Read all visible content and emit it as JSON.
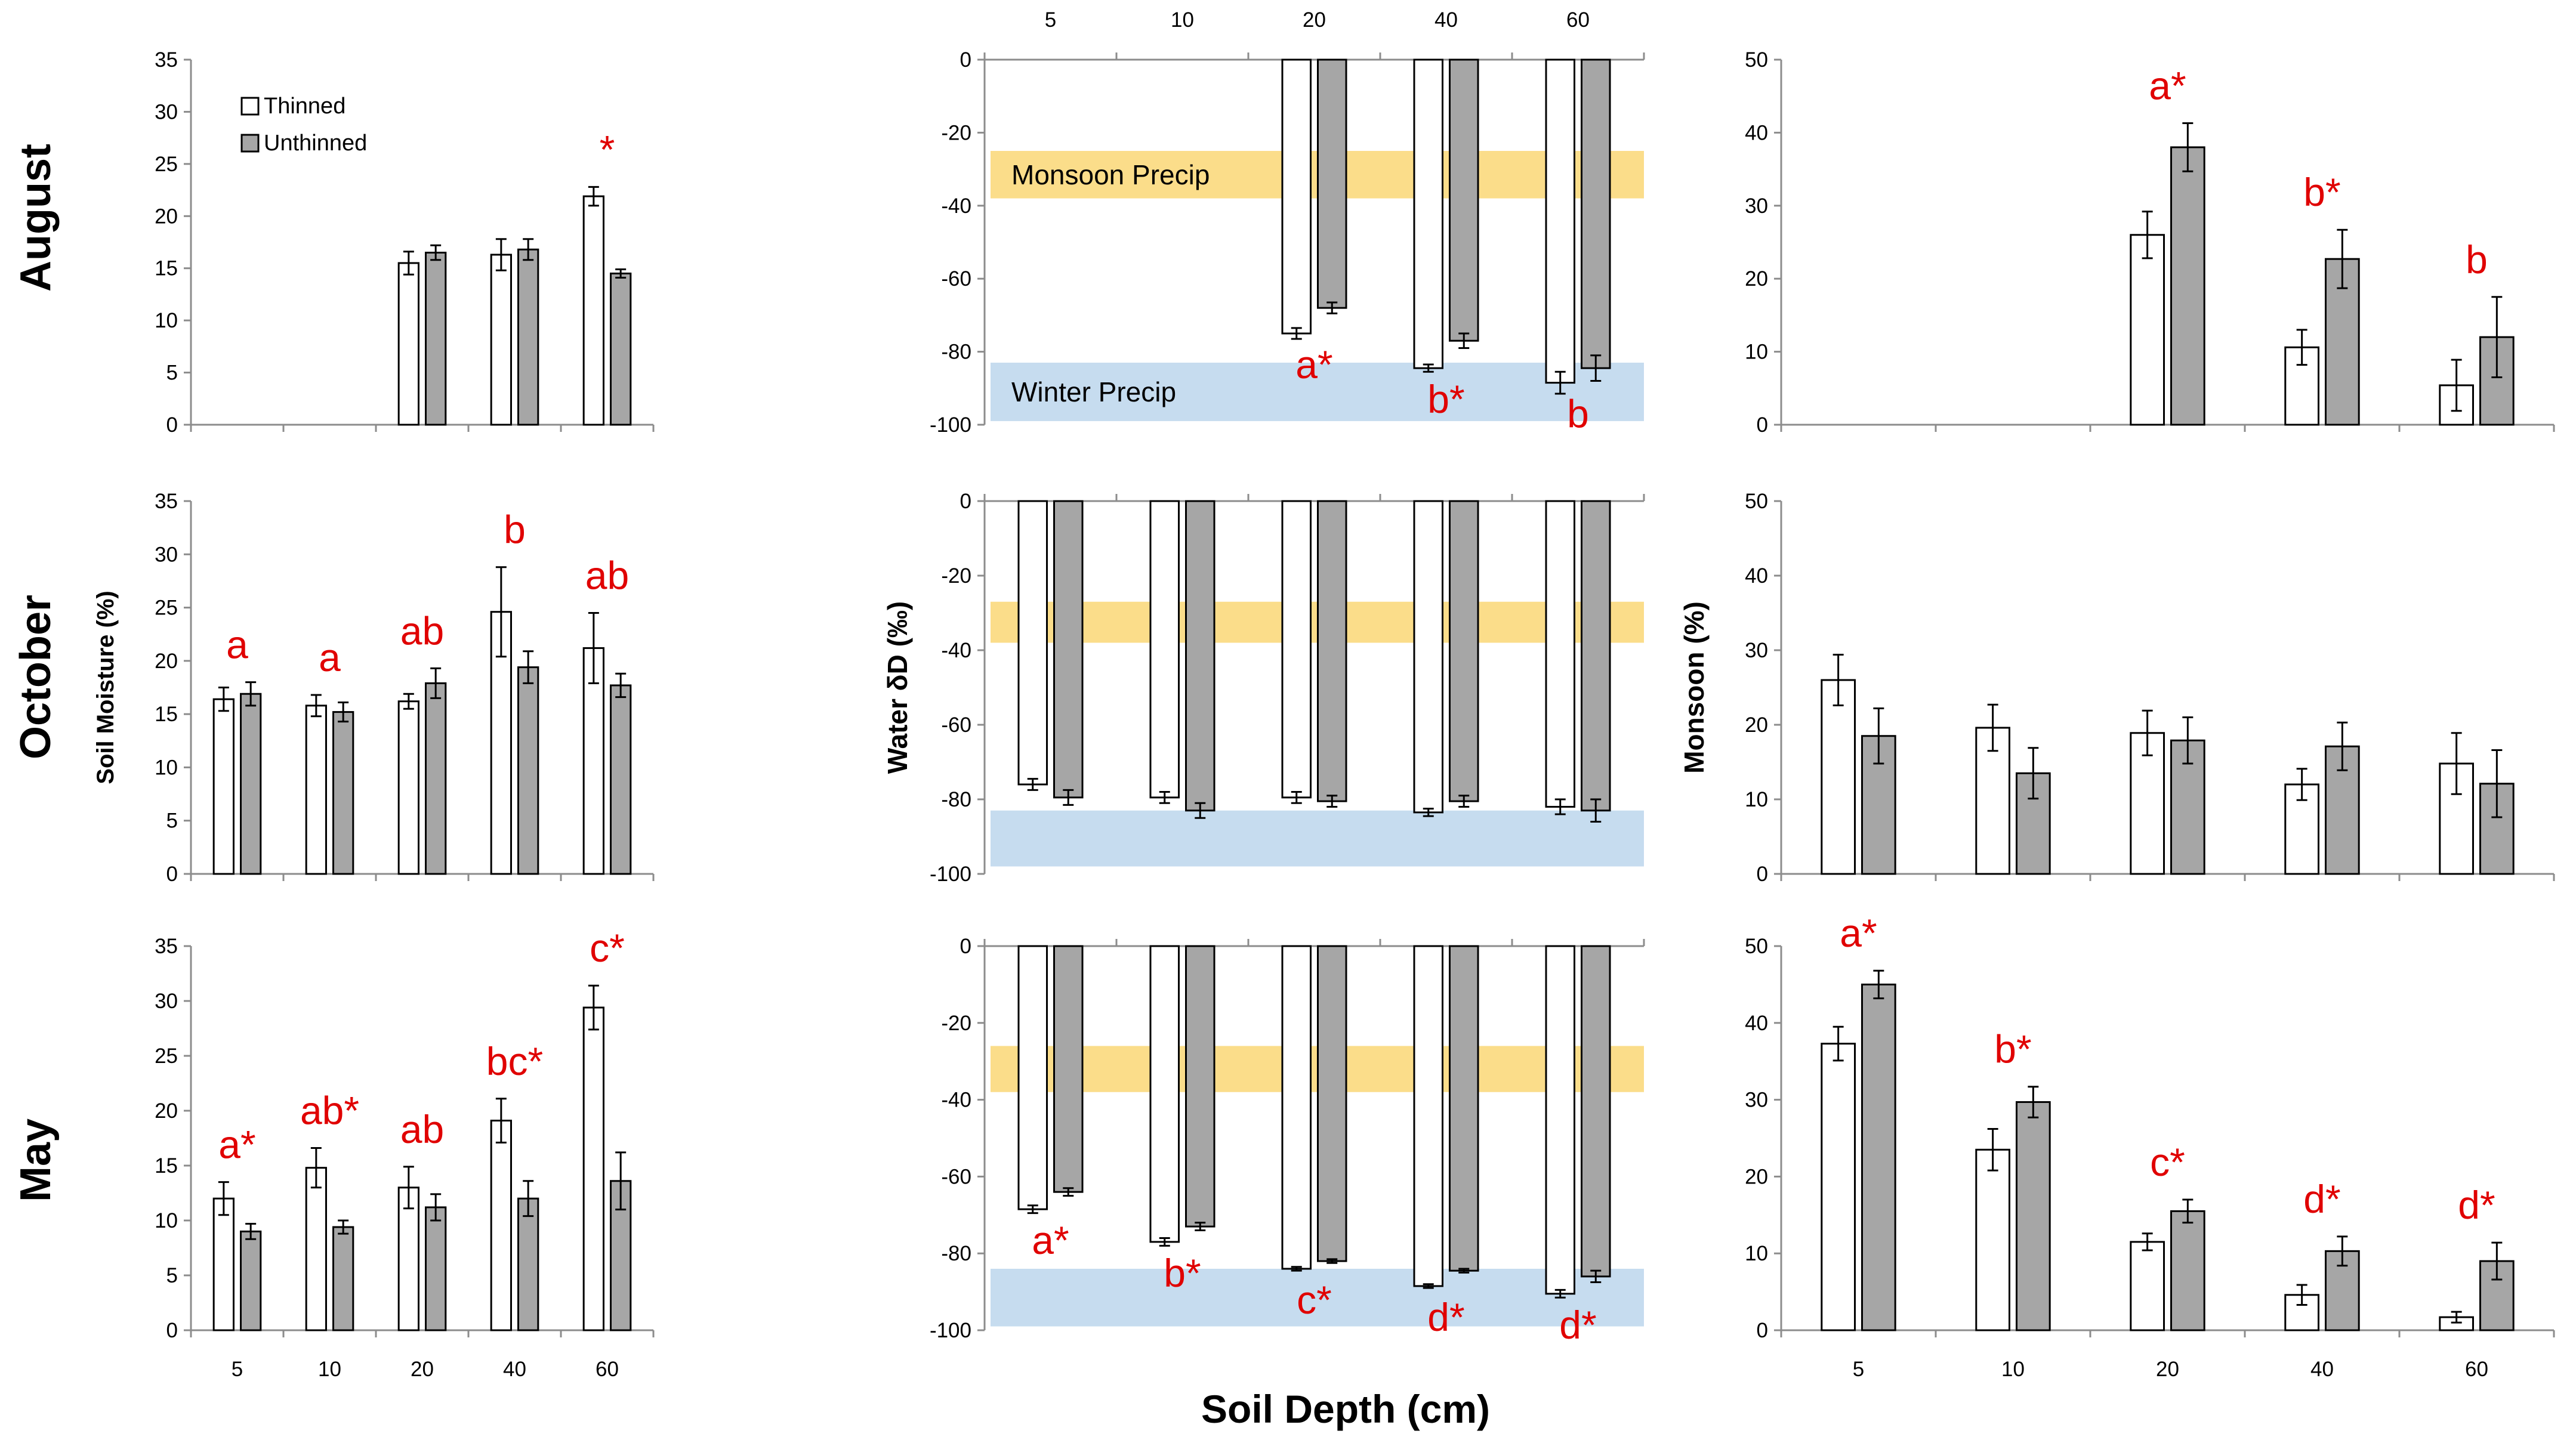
{
  "colors": {
    "thinned": "#ffffff",
    "unthinned": "#a6a6a6",
    "annotation": "#e00000",
    "monsoon_band": "#fbdd8a",
    "winter_band": "#c6dcef"
  },
  "row_titles": [
    "August",
    "October",
    "May"
  ],
  "x_title": "Soil Depth (cm)",
  "chart_data": [
    {
      "id": "aug-moisture",
      "type": "bar",
      "row": 0,
      "col": 0,
      "categories": [
        "5",
        "10",
        "20",
        "40",
        "60"
      ],
      "series": [
        {
          "name": "Thinned",
          "values": [
            null,
            null,
            15.5,
            16.3,
            21.9
          ],
          "errors": [
            null,
            null,
            1.1,
            1.5,
            0.9
          ]
        },
        {
          "name": "Unthinned",
          "values": [
            null,
            null,
            16.5,
            16.8,
            14.5
          ],
          "errors": [
            null,
            null,
            0.7,
            1.0,
            0.4
          ]
        }
      ],
      "ylim": [
        0,
        35
      ],
      "yticks": [
        0,
        5,
        10,
        15,
        20,
        25,
        30,
        35
      ],
      "ylabel": "",
      "show_xticks": false,
      "legend": {
        "items": [
          "Thinned",
          "Unthinned"
        ],
        "position": "top-left"
      },
      "annotations": [
        {
          "text": "*",
          "category": "60"
        }
      ]
    },
    {
      "id": "aug-water",
      "type": "bar",
      "row": 0,
      "col": 1,
      "categories": [
        "5",
        "10",
        "20",
        "40",
        "60"
      ],
      "series": [
        {
          "name": "Thinned",
          "values": [
            null,
            null,
            -75,
            -84.5,
            -88.5
          ],
          "errors": [
            null,
            null,
            1.5,
            1.0,
            3.0
          ]
        },
        {
          "name": "Unthinned",
          "values": [
            null,
            null,
            -68,
            -77,
            -84.5
          ],
          "errors": [
            null,
            null,
            1.5,
            2.0,
            3.5
          ]
        }
      ],
      "ylim": [
        -100,
        0
      ],
      "yticks": [
        0,
        -20,
        -40,
        -60,
        -80,
        -100
      ],
      "ylabel": "",
      "xticks_top": true,
      "bands": [
        {
          "name": "monsoon",
          "from": -25,
          "to": -38,
          "label": "Monsoon Precip"
        },
        {
          "name": "winter",
          "from": -83,
          "to": -99,
          "label": "Winter Precip"
        }
      ],
      "annotations": [
        {
          "text": "a*",
          "category": "20"
        },
        {
          "text": "b*",
          "category": "40"
        },
        {
          "text": "b",
          "category": "60"
        }
      ]
    },
    {
      "id": "aug-monsoon",
      "type": "bar",
      "row": 0,
      "col": 2,
      "categories": [
        "5",
        "10",
        "20",
        "40",
        "60"
      ],
      "series": [
        {
          "name": "Thinned",
          "values": [
            null,
            null,
            26,
            10.6,
            5.4
          ],
          "errors": [
            null,
            null,
            3.2,
            2.4,
            3.5
          ]
        },
        {
          "name": "Unthinned",
          "values": [
            null,
            null,
            38,
            22.7,
            12
          ],
          "errors": [
            null,
            null,
            3.3,
            4,
            5.5
          ]
        }
      ],
      "ylim": [
        0,
        50
      ],
      "yticks": [
        0,
        10,
        20,
        30,
        40,
        50
      ],
      "ylabel": "",
      "show_xticks": false,
      "annotations": [
        {
          "text": "a*",
          "category": "20"
        },
        {
          "text": "b*",
          "category": "40"
        },
        {
          "text": "b",
          "category": "60"
        }
      ]
    },
    {
      "id": "oct-moisture",
      "type": "bar",
      "row": 1,
      "col": 0,
      "categories": [
        "5",
        "10",
        "20",
        "40",
        "60"
      ],
      "series": [
        {
          "name": "Thinned",
          "values": [
            16.4,
            15.8,
            16.2,
            24.6,
            21.2
          ],
          "errors": [
            1.1,
            1.0,
            0.7,
            4.2,
            3.3
          ]
        },
        {
          "name": "Unthinned",
          "values": [
            16.9,
            15.2,
            17.9,
            19.4,
            17.7
          ],
          "errors": [
            1.1,
            0.9,
            1.4,
            1.5,
            1.1
          ]
        }
      ],
      "ylim": [
        0,
        35
      ],
      "yticks": [
        0,
        5,
        10,
        15,
        20,
        25,
        30,
        35
      ],
      "ylabel": "Soil Moisture (%)",
      "show_xticks": false,
      "annotations": [
        {
          "text": "a",
          "category": "5"
        },
        {
          "text": "a",
          "category": "10"
        },
        {
          "text": "ab",
          "category": "20"
        },
        {
          "text": "b",
          "category": "40"
        },
        {
          "text": "ab",
          "category": "60"
        }
      ]
    },
    {
      "id": "oct-water",
      "type": "bar",
      "row": 1,
      "col": 1,
      "categories": [
        "5",
        "10",
        "20",
        "40",
        "60"
      ],
      "series": [
        {
          "name": "Thinned",
          "values": [
            -76,
            -79.5,
            -79.5,
            -83.5,
            -82
          ],
          "errors": [
            1.5,
            1.5,
            1.5,
            1.0,
            2.0
          ]
        },
        {
          "name": "Unthinned",
          "values": [
            -79.5,
            -83,
            -80.5,
            -80.5,
            -83
          ],
          "errors": [
            2.0,
            2.0,
            1.5,
            1.5,
            3.0
          ]
        }
      ],
      "ylim": [
        -100,
        0
      ],
      "yticks": [
        0,
        -20,
        -40,
        -60,
        -80,
        -100
      ],
      "ylabel": "Water δD (‰)",
      "bands": [
        {
          "name": "monsoon",
          "from": -27,
          "to": -38,
          "label": ""
        },
        {
          "name": "winter",
          "from": -83,
          "to": -98,
          "label": ""
        }
      ],
      "annotations": []
    },
    {
      "id": "oct-monsoon",
      "type": "bar",
      "row": 1,
      "col": 2,
      "categories": [
        "5",
        "10",
        "20",
        "40",
        "60"
      ],
      "series": [
        {
          "name": "Thinned",
          "values": [
            26,
            19.6,
            18.9,
            12,
            14.8
          ],
          "errors": [
            3.4,
            3.1,
            3.0,
            2.1,
            4.1
          ]
        },
        {
          "name": "Unthinned",
          "values": [
            18.5,
            13.5,
            17.9,
            17.1,
            12.1
          ],
          "errors": [
            3.7,
            3.4,
            3.1,
            3.2,
            4.5
          ]
        }
      ],
      "ylim": [
        0,
        50
      ],
      "yticks": [
        0,
        10,
        20,
        30,
        40,
        50
      ],
      "ylabel": "Monsoon (%)",
      "show_xticks": false,
      "annotations": []
    },
    {
      "id": "may-moisture",
      "type": "bar",
      "row": 2,
      "col": 0,
      "categories": [
        "5",
        "10",
        "20",
        "40",
        "60"
      ],
      "series": [
        {
          "name": "Thinned",
          "values": [
            12,
            14.8,
            13,
            19.1,
            29.4
          ],
          "errors": [
            1.5,
            1.8,
            1.9,
            2.0,
            2.0
          ]
        },
        {
          "name": "Unthinned",
          "values": [
            9,
            9.4,
            11.2,
            12,
            13.6
          ],
          "errors": [
            0.7,
            0.6,
            1.2,
            1.6,
            2.6
          ]
        }
      ],
      "ylim": [
        0,
        35
      ],
      "yticks": [
        0,
        5,
        10,
        15,
        20,
        25,
        30,
        35
      ],
      "ylabel": "",
      "show_xticks": true,
      "annotations": [
        {
          "text": "a*",
          "category": "5"
        },
        {
          "text": "ab*",
          "category": "10"
        },
        {
          "text": "ab",
          "category": "20"
        },
        {
          "text": "bc*",
          "category": "40"
        },
        {
          "text": "c*",
          "category": "60"
        }
      ]
    },
    {
      "id": "may-water",
      "type": "bar",
      "row": 2,
      "col": 1,
      "categories": [
        "5",
        "10",
        "20",
        "40",
        "60"
      ],
      "series": [
        {
          "name": "Thinned",
          "values": [
            -68.5,
            -77,
            -84,
            -88.5,
            -90.5
          ],
          "errors": [
            1.0,
            1.0,
            0.5,
            0.5,
            1.0
          ]
        },
        {
          "name": "Unthinned",
          "values": [
            -64,
            -73,
            -82,
            -84.5,
            -86
          ],
          "errors": [
            1.0,
            1.0,
            0.5,
            0.5,
            1.5
          ]
        }
      ],
      "ylim": [
        -100,
        0
      ],
      "yticks": [
        0,
        -20,
        -40,
        -60,
        -80,
        -100
      ],
      "ylabel": "",
      "bands": [
        {
          "name": "monsoon",
          "from": -26,
          "to": -38,
          "label": ""
        },
        {
          "name": "winter",
          "from": -84,
          "to": -99,
          "label": ""
        }
      ],
      "annotations": [
        {
          "text": "a*",
          "category": "5"
        },
        {
          "text": "b*",
          "category": "10"
        },
        {
          "text": "c*",
          "category": "20"
        },
        {
          "text": "d*",
          "category": "40"
        },
        {
          "text": "d*",
          "category": "60"
        }
      ]
    },
    {
      "id": "may-monsoon",
      "type": "bar",
      "row": 2,
      "col": 2,
      "categories": [
        "5",
        "10",
        "20",
        "40",
        "60"
      ],
      "series": [
        {
          "name": "Thinned",
          "values": [
            37.3,
            23.5,
            11.5,
            4.6,
            1.7
          ],
          "errors": [
            2.2,
            2.7,
            1.1,
            1.3,
            0.7
          ]
        },
        {
          "name": "Unthinned",
          "values": [
            45,
            29.7,
            15.5,
            10.3,
            9
          ],
          "errors": [
            1.8,
            2.0,
            1.5,
            1.9,
            2.4
          ]
        }
      ],
      "ylim": [
        0,
        50
      ],
      "yticks": [
        0,
        10,
        20,
        30,
        40,
        50
      ],
      "ylabel": "",
      "show_xticks": true,
      "annotations": [
        {
          "text": "a*",
          "category": "5"
        },
        {
          "text": "b*",
          "category": "10"
        },
        {
          "text": "c*",
          "category": "20"
        },
        {
          "text": "d*",
          "category": "40"
        },
        {
          "text": "d*",
          "category": "60"
        }
      ]
    }
  ]
}
